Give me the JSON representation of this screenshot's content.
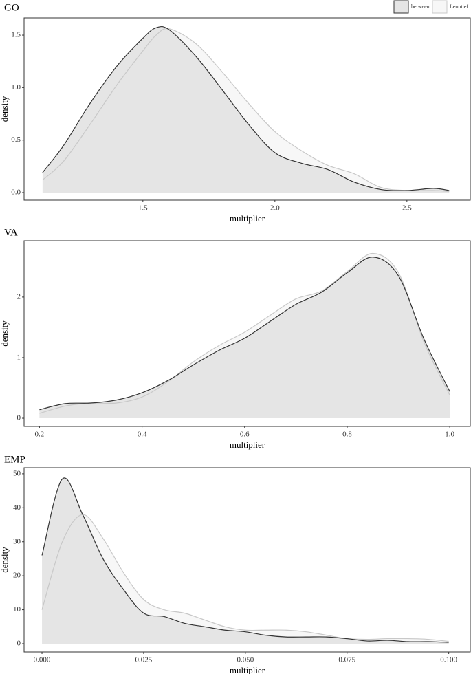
{
  "chart_data": [
    {
      "type": "area",
      "title": "GO",
      "x_label": "multiplier",
      "y_label": "density",
      "x": [
        1.12,
        1.2,
        1.3,
        1.4,
        1.5,
        1.55,
        1.6,
        1.7,
        1.8,
        1.9,
        2.0,
        2.1,
        2.2,
        2.3,
        2.4,
        2.5,
        2.6,
        2.66
      ],
      "series": [
        {
          "name": "Leontief",
          "color": "#c8c8c8",
          "fill": "#f7f7f7",
          "values": [
            0.12,
            0.3,
            0.65,
            1.02,
            1.35,
            1.5,
            1.56,
            1.42,
            1.15,
            0.85,
            0.58,
            0.4,
            0.26,
            0.18,
            0.05,
            0.02,
            0.02,
            0.01
          ]
        },
        {
          "name": "between",
          "color": "#333333",
          "fill": "#e5e5e5",
          "values": [
            0.19,
            0.45,
            0.85,
            1.2,
            1.47,
            1.57,
            1.55,
            1.3,
            0.98,
            0.65,
            0.38,
            0.28,
            0.22,
            0.1,
            0.03,
            0.02,
            0.04,
            0.02
          ]
        }
      ],
      "xlim": [
        1.05,
        2.74
      ],
      "ylim": [
        -0.072,
        1.664
      ],
      "xticks": [
        {
          "value": 1.5,
          "label": "1.5"
        },
        {
          "value": 2,
          "label": "2.0"
        },
        {
          "value": 2.5,
          "label": "2.5"
        }
      ],
      "yticks": [
        {
          "value": 0,
          "label": "0.0"
        },
        {
          "value": 0.5,
          "label": "0.5"
        },
        {
          "value": 1,
          "label": "1.0"
        },
        {
          "value": 1.5,
          "label": "1.5"
        }
      ]
    },
    {
      "type": "area",
      "title": "VA",
      "x_label": "multiplier",
      "y_label": "density",
      "x": [
        0.2,
        0.25,
        0.3,
        0.35,
        0.4,
        0.45,
        0.5,
        0.55,
        0.6,
        0.65,
        0.7,
        0.75,
        0.8,
        0.85,
        0.9,
        0.95,
        1.0
      ],
      "series": [
        {
          "color": "#c8c8c8",
          "fill": "#f7f7f7",
          "values": [
            0.08,
            0.2,
            0.25,
            0.25,
            0.35,
            0.6,
            0.93,
            1.2,
            1.42,
            1.7,
            1.97,
            2.1,
            2.42,
            2.72,
            2.4,
            1.25,
            0.38
          ]
        },
        {
          "color": "#333333",
          "fill": "#e5e5e5",
          "values": [
            0.14,
            0.24,
            0.25,
            0.3,
            0.42,
            0.62,
            0.88,
            1.12,
            1.32,
            1.6,
            1.88,
            2.08,
            2.4,
            2.66,
            2.35,
            1.3,
            0.44
          ]
        }
      ],
      "xlim": [
        0.17,
        1.04
      ],
      "ylim": [
        -0.136,
        2.93
      ],
      "xticks": [
        {
          "value": 0.2,
          "label": "0.2"
        },
        {
          "value": 0.4,
          "label": "0.4"
        },
        {
          "value": 0.6,
          "label": "0.6"
        },
        {
          "value": 0.8,
          "label": "0.8"
        },
        {
          "value": 1,
          "label": "1.0"
        }
      ],
      "yticks": [
        0,
        1,
        2
      ]
    },
    {
      "type": "area",
      "title": "EMP",
      "x_label": "multiplier",
      "y_label": "density",
      "x": [
        0,
        0.005,
        0.01,
        0.015,
        0.02,
        0.025,
        0.03,
        0.035,
        0.04,
        0.045,
        0.05,
        0.055,
        0.06,
        0.065,
        0.07,
        0.075,
        0.08,
        0.085,
        0.09,
        0.095,
        0.1
      ],
      "series": [
        {
          "color": "#c8c8c8",
          "fill": "#f7f7f7",
          "values": [
            10,
            30,
            38,
            31,
            21,
            13,
            10,
            9,
            7,
            5,
            4,
            4,
            4,
            3.5,
            2.5,
            1.5,
            1.3,
            1.5,
            1.5,
            1.3,
            0.7
          ]
        },
        {
          "color": "#333333",
          "fill": "#e5e5e5",
          "values": [
            26,
            48.5,
            38,
            25,
            16,
            9,
            8,
            6,
            5,
            4,
            3.5,
            2.5,
            2,
            2,
            2,
            1.5,
            0.8,
            1,
            0.6,
            0.6,
            0.4
          ]
        }
      ],
      "xlim": [
        -0.0044,
        0.1053
      ],
      "ylim": [
        -2.43,
        51.8
      ],
      "xticks": [
        {
          "value": 0,
          "label": "0.000"
        },
        {
          "value": 0.025,
          "label": "0.025"
        },
        {
          "value": 0.05,
          "label": "0.050"
        },
        {
          "value": 0.075,
          "label": "0.075"
        },
        {
          "value": 0.1,
          "label": "0.100"
        }
      ],
      "yticks": [
        0,
        10,
        20,
        30,
        40,
        50
      ]
    }
  ]
}
